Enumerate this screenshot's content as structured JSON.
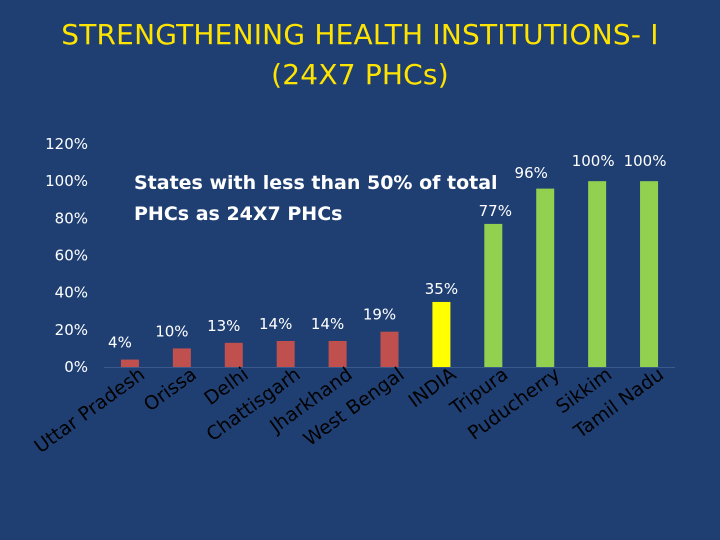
{
  "title": {
    "line1": "STRENGTHENING HEALTH INSTITUTIONS- I",
    "line2": "(24X7 PHCs)"
  },
  "annotation": {
    "line1": "States with less than 50% of total",
    "line2": "PHCs as 24X7 PHCs"
  },
  "colors": {
    "background": "#1F3F73",
    "title": "#FFE400",
    "low": "#C0504D",
    "india": "#FFFF00",
    "high": "#92D050"
  },
  "chart_data": {
    "type": "bar",
    "title": "STRENGTHENING HEALTH INSTITUTIONS- I (24X7 PHCs)",
    "categories": [
      "Uttar Pradesh",
      "Orissa",
      "Delhi",
      "Chattisgarh",
      "Jharkhand",
      "West Bengal",
      "INDIA",
      "Tripura",
      "Puducherry",
      "Sikkim",
      "Tamil Nadu"
    ],
    "values": [
      4,
      10,
      13,
      14,
      14,
      19,
      35,
      77,
      96,
      100,
      100
    ],
    "data_labels": [
      "4%",
      "10%",
      "13%",
      "14%",
      "14%",
      "19%",
      "35%",
      "77%",
      "96%",
      "100%",
      "100%"
    ],
    "groups": [
      "low",
      "low",
      "low",
      "low",
      "low",
      "low",
      "india",
      "high",
      "high",
      "high",
      "high"
    ],
    "yticks": [
      "0%",
      "20%",
      "40%",
      "60%",
      "80%",
      "100%",
      "120%"
    ],
    "ylim": [
      0,
      120
    ],
    "xlabel": "",
    "ylabel": ""
  }
}
